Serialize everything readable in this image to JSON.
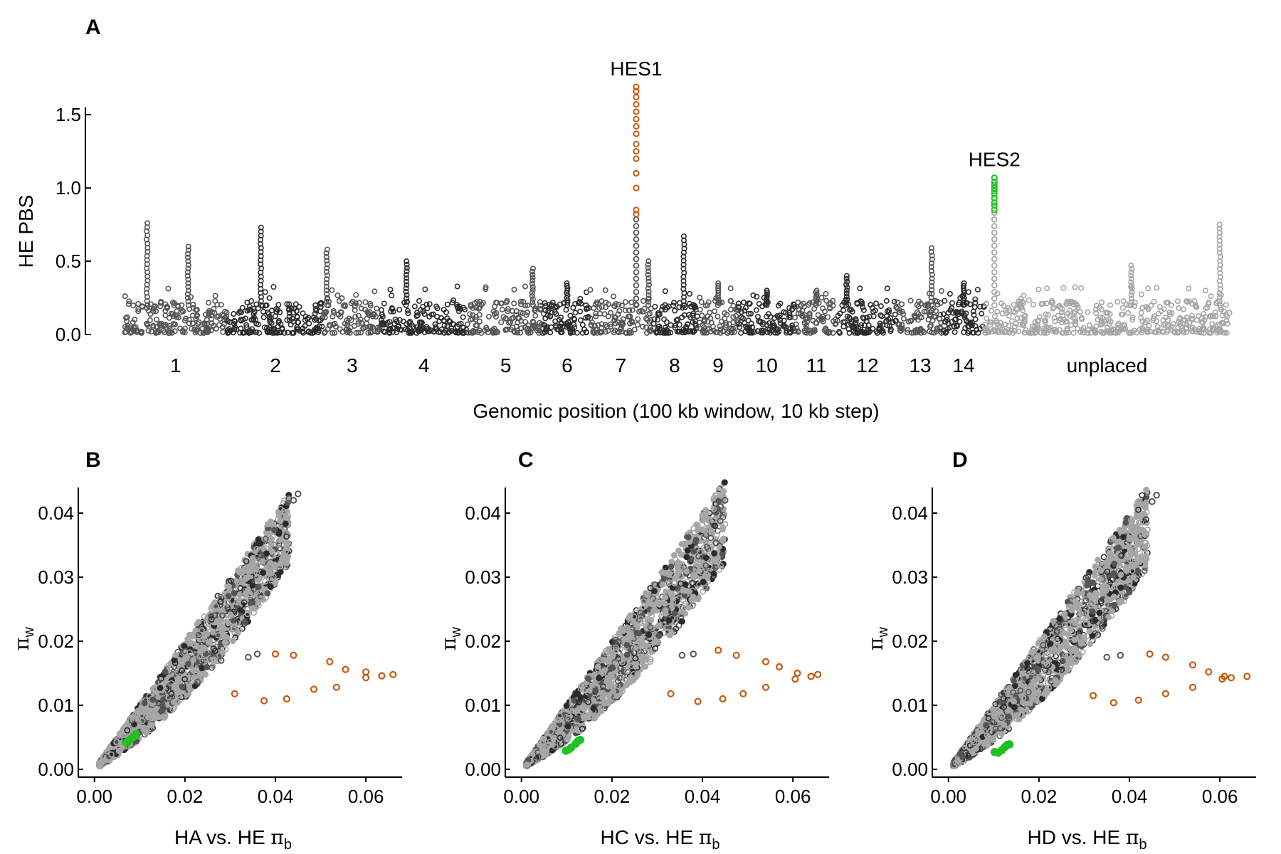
{
  "panels": {
    "A": {
      "letter": "A"
    },
    "B": {
      "letter": "B"
    },
    "C": {
      "letter": "C"
    },
    "D": {
      "letter": "D"
    }
  },
  "colors": {
    "chrom_dark": "#2b2b2b",
    "chrom_mid": "#555555",
    "unplaced": "#a6a6a6",
    "hes1": "#c55a11",
    "hes2": "#22c022",
    "axis": "#000000"
  },
  "chart_data": [
    {
      "id": "A",
      "type": "scatter",
      "title": "",
      "ylabel": "HE PBS",
      "xlabel": "Genomic position (100 kb window, 10 kb step)",
      "ylim": [
        0,
        1.7
      ],
      "yticks": [
        "0.0",
        "0.5",
        "1.0",
        "1.5"
      ],
      "grid": false,
      "chromosomes": [
        {
          "label": "1",
          "start": 0,
          "end": 1.0,
          "shade": "mid",
          "peaks": [
            {
              "pos": 0.22,
              "h": 0.76
            },
            {
              "pos": 0.62,
              "h": 0.6
            }
          ]
        },
        {
          "label": "2",
          "start": 1.0,
          "end": 1.95,
          "shade": "dark",
          "peaks": [
            {
              "pos": 0.35,
              "h": 0.73
            }
          ]
        },
        {
          "label": "3",
          "start": 1.95,
          "end": 2.5,
          "shade": "mid",
          "peaks": [
            {
              "pos": 0.05,
              "h": 0.58
            }
          ]
        },
        {
          "label": "4",
          "start": 2.5,
          "end": 3.35,
          "shade": "dark",
          "peaks": [
            {
              "pos": 0.3,
              "h": 0.5
            }
          ]
        },
        {
          "label": "5",
          "start": 3.35,
          "end": 4.1,
          "shade": "mid",
          "peaks": [
            {
              "pos": 0.85,
              "h": 0.45
            }
          ]
        },
        {
          "label": "6",
          "start": 4.1,
          "end": 4.55,
          "shade": "dark",
          "peaks": [
            {
              "pos": 0.5,
              "h": 0.35
            }
          ]
        },
        {
          "label": "7",
          "start": 4.55,
          "end": 5.15,
          "shade": "mid",
          "peaks": [
            {
              "pos": 0.95,
              "h": 0.5
            }
          ]
        },
        {
          "label": "8",
          "start": 5.15,
          "end": 5.6,
          "shade": "dark",
          "peaks": [
            {
              "pos": 0.7,
              "h": 0.67
            }
          ]
        },
        {
          "label": "9",
          "start": 5.6,
          "end": 6.0,
          "shade": "mid",
          "peaks": [
            {
              "pos": 0.5,
              "h": 0.35
            }
          ]
        },
        {
          "label": "10",
          "start": 6.0,
          "end": 6.55,
          "shade": "dark",
          "peaks": [
            {
              "pos": 0.5,
              "h": 0.3
            }
          ]
        },
        {
          "label": "11",
          "start": 6.55,
          "end": 6.97,
          "shade": "mid",
          "peaks": [
            {
              "pos": 0.5,
              "h": 0.3
            }
          ]
        },
        {
          "label": "12",
          "start": 6.97,
          "end": 7.55,
          "shade": "dark",
          "peaks": [
            {
              "pos": 0.15,
              "h": 0.4
            }
          ]
        },
        {
          "label": "13",
          "start": 7.55,
          "end": 8.0,
          "shade": "mid",
          "peaks": [
            {
              "pos": 0.75,
              "h": 0.59
            }
          ]
        },
        {
          "label": "14",
          "start": 8.0,
          "end": 8.4,
          "shade": "dark",
          "peaks": [
            {
              "pos": 0.5,
              "h": 0.35
            }
          ]
        },
        {
          "label": "unplaced",
          "start": 8.4,
          "end": 10.8,
          "shade": "unplaced",
          "peaks": [
            {
              "pos": 0.6,
              "h": 0.47
            },
            {
              "pos": 0.96,
              "h": 0.75
            }
          ]
        }
      ],
      "highlights": [
        {
          "label": "HES1",
          "color": "hes1",
          "x": 5.0,
          "y": [
            0.82,
            0.85,
            1.0,
            1.1,
            1.2,
            1.25,
            1.3,
            1.37,
            1.42,
            1.47,
            1.52,
            1.57,
            1.62,
            1.66,
            1.69
          ]
        },
        {
          "label": "HES2",
          "color": "hes2",
          "x": 8.5,
          "y": [
            0.85,
            0.88,
            0.9,
            0.93,
            0.96,
            0.98,
            1.0,
            1.02,
            1.04,
            1.07
          ]
        }
      ],
      "labels": {
        "HES1": "HES1",
        "HES2": "HES2"
      }
    },
    {
      "id": "B",
      "type": "scatter",
      "title": "",
      "xlabel": "HA vs. HE",
      "xlabel_symbol": "π",
      "xlabel_sub": "b",
      "ylabel_symbol": "π",
      "ylabel_sub": "w",
      "xlim": [
        -0.002,
        0.068
      ],
      "ylim": [
        -0.001,
        0.044
      ],
      "xticks": [
        "0.00",
        "0.02",
        "0.04",
        "0.06"
      ],
      "yticks": [
        "0.00",
        "0.01",
        "0.02",
        "0.03",
        "0.04"
      ],
      "cloud_slope": 0.85,
      "cloud_xmax": 0.043,
      "orange_points": [
        [
          0.031,
          0.0118
        ],
        [
          0.0375,
          0.0107
        ],
        [
          0.0425,
          0.011
        ],
        [
          0.0485,
          0.0125
        ],
        [
          0.0535,
          0.0128
        ],
        [
          0.06,
          0.0143
        ],
        [
          0.0635,
          0.0146
        ],
        [
          0.066,
          0.0148
        ],
        [
          0.06,
          0.0152
        ],
        [
          0.0555,
          0.0156
        ],
        [
          0.052,
          0.0168
        ],
        [
          0.044,
          0.0178
        ],
        [
          0.04,
          0.018
        ]
      ],
      "green_points": [
        [
          0.007,
          0.0042
        ],
        [
          0.0078,
          0.0046
        ],
        [
          0.0083,
          0.0049
        ],
        [
          0.0088,
          0.0052
        ],
        [
          0.0092,
          0.0055
        ],
        [
          0.0075,
          0.0043
        ]
      ],
      "dark_points": [
        [
          0.034,
          0.0175
        ],
        [
          0.036,
          0.018
        ],
        [
          0.028,
          0.017
        ],
        [
          0.045,
          0.043
        ],
        [
          0.044,
          0.042
        ]
      ]
    },
    {
      "id": "C",
      "type": "scatter",
      "title": "",
      "xlabel": "HC vs. HE",
      "xlabel_symbol": "π",
      "xlabel_sub": "b",
      "ylabel_symbol": "π",
      "ylabel_sub": "w",
      "xlim": [
        -0.002,
        0.068
      ],
      "ylim": [
        -0.001,
        0.044
      ],
      "xticks": [
        "0.00",
        "0.02",
        "0.04",
        "0.06"
      ],
      "yticks": [
        "0.00",
        "0.01",
        "0.02",
        "0.03",
        "0.04"
      ],
      "cloud_slope": 0.82,
      "cloud_xmax": 0.045,
      "orange_points": [
        [
          0.033,
          0.0118
        ],
        [
          0.039,
          0.0106
        ],
        [
          0.0445,
          0.011
        ],
        [
          0.049,
          0.0118
        ],
        [
          0.054,
          0.0128
        ],
        [
          0.0605,
          0.0141
        ],
        [
          0.064,
          0.0145
        ],
        [
          0.0655,
          0.0148
        ],
        [
          0.061,
          0.015
        ],
        [
          0.057,
          0.016
        ],
        [
          0.054,
          0.0168
        ],
        [
          0.0475,
          0.0178
        ],
        [
          0.0435,
          0.0186
        ]
      ],
      "green_points": [
        [
          0.0098,
          0.0029
        ],
        [
          0.0105,
          0.0031
        ],
        [
          0.011,
          0.0034
        ],
        [
          0.012,
          0.004
        ],
        [
          0.0125,
          0.0044
        ],
        [
          0.013,
          0.0046
        ]
      ],
      "dark_points": [
        [
          0.0355,
          0.0178
        ],
        [
          0.038,
          0.018
        ],
        [
          0.045,
          0.042
        ],
        [
          0.044,
          0.041
        ]
      ]
    },
    {
      "id": "D",
      "type": "scatter",
      "title": "",
      "xlabel": "HD vs. HE",
      "xlabel_symbol": "π",
      "xlabel_sub": "b",
      "ylabel_symbol": "π",
      "ylabel_sub": "w",
      "xlim": [
        -0.002,
        0.068
      ],
      "ylim": [
        -0.001,
        0.044
      ],
      "xticks": [
        "0.00",
        "0.02",
        "0.04",
        "0.06"
      ],
      "yticks": [
        "0.00",
        "0.01",
        "0.02",
        "0.03",
        "0.04"
      ],
      "cloud_slope": 0.82,
      "cloud_xmax": 0.044,
      "orange_points": [
        [
          0.032,
          0.0115
        ],
        [
          0.0365,
          0.0104
        ],
        [
          0.042,
          0.0108
        ],
        [
          0.048,
          0.0118
        ],
        [
          0.054,
          0.0128
        ],
        [
          0.0605,
          0.0141
        ],
        [
          0.0625,
          0.0143
        ],
        [
          0.066,
          0.0145
        ],
        [
          0.061,
          0.0145
        ],
        [
          0.0575,
          0.0152
        ],
        [
          0.054,
          0.0163
        ],
        [
          0.048,
          0.0175
        ],
        [
          0.0445,
          0.018
        ]
      ],
      "green_points": [
        [
          0.0102,
          0.0027
        ],
        [
          0.011,
          0.0026
        ],
        [
          0.0118,
          0.003
        ],
        [
          0.0125,
          0.0035
        ],
        [
          0.013,
          0.0038
        ],
        [
          0.0135,
          0.0039
        ]
      ],
      "dark_points": [
        [
          0.035,
          0.0175
        ],
        [
          0.038,
          0.0178
        ],
        [
          0.046,
          0.0428
        ],
        [
          0.045,
          0.0418
        ]
      ]
    }
  ]
}
